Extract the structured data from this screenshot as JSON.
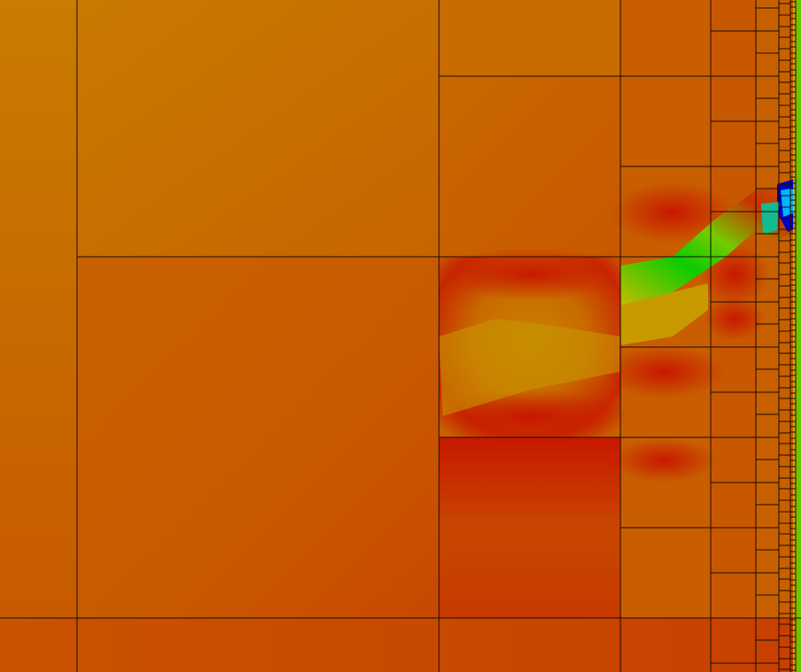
{
  "view": {
    "kind": "adaptive-mesh-refinement-field",
    "colormap": [
      "#0000c8",
      "#00c8ff",
      "#00d200",
      "#c8c800",
      "#c87800",
      "#c85000",
      "#c81400"
    ],
    "background_color": "#c86400",
    "grid_line_color": "#1a0a00"
  }
}
